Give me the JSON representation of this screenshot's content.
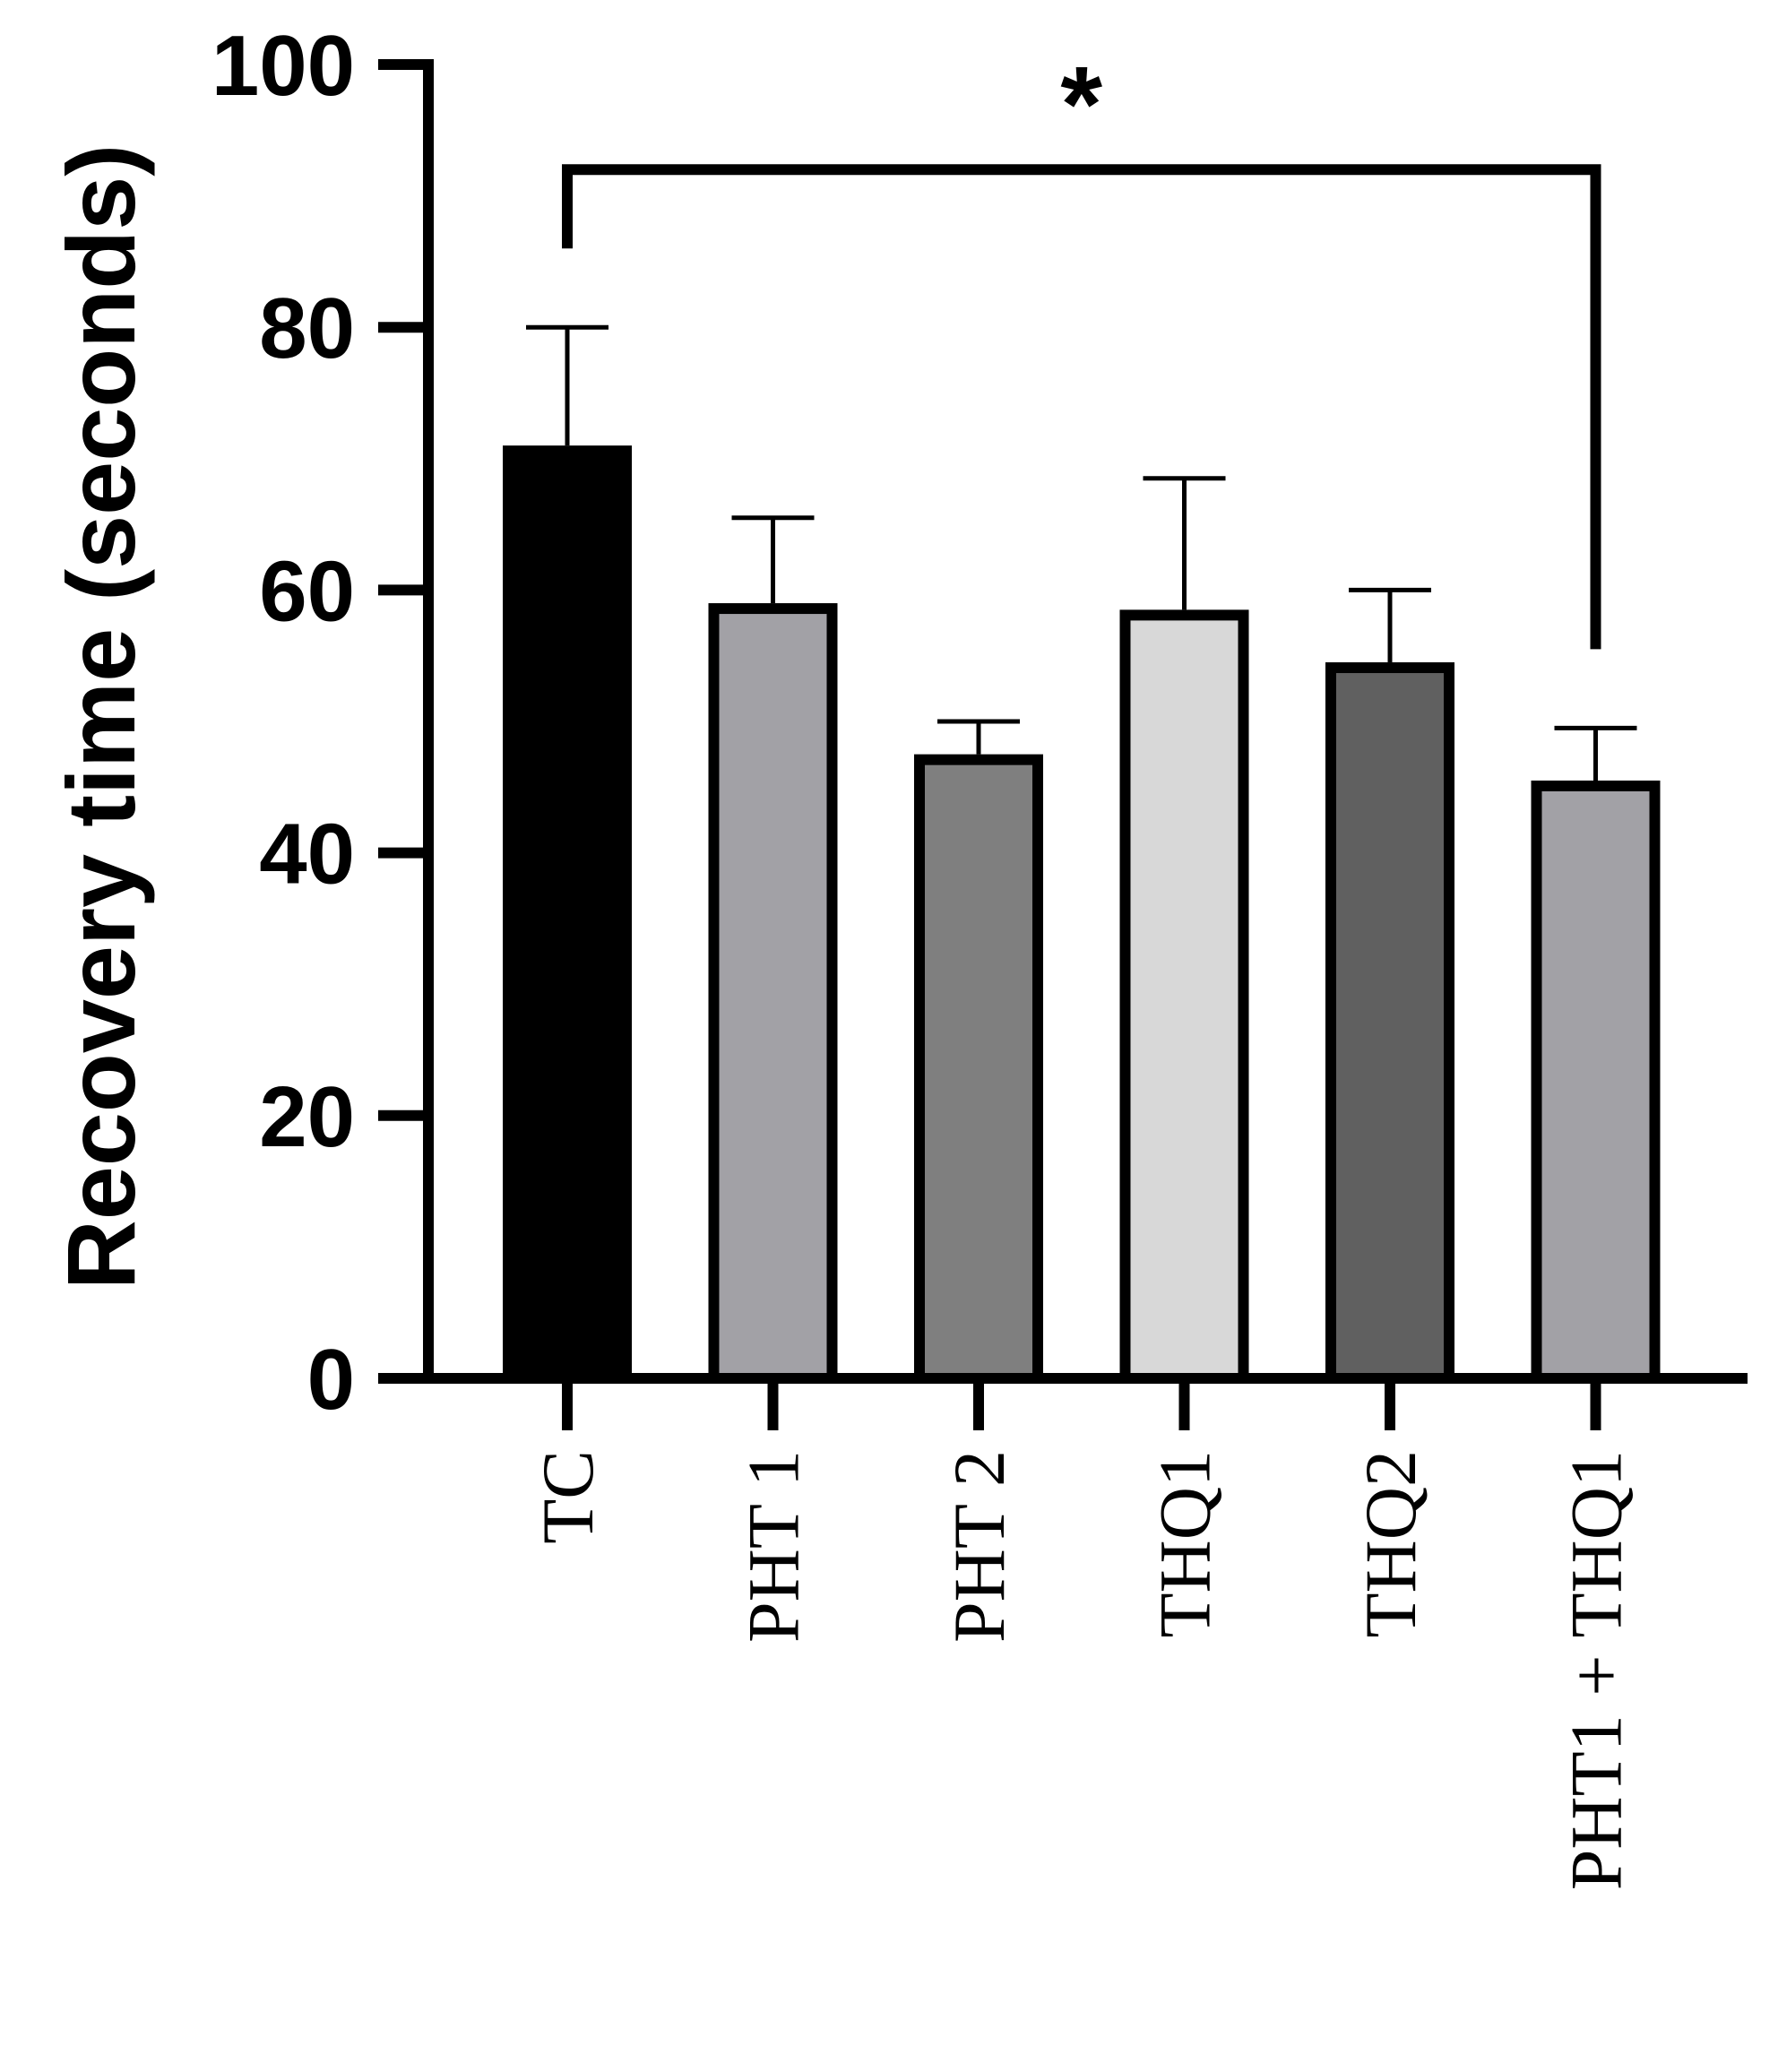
{
  "chart_data": {
    "type": "bar",
    "title": "",
    "xlabel": "",
    "ylabel": "Recovery time (seconds)",
    "ylim": [
      0,
      100
    ],
    "yticks": [
      0,
      20,
      40,
      60,
      80,
      100
    ],
    "ytick_labels": [
      "0",
      "20",
      "40",
      "60",
      "80",
      "100"
    ],
    "categories": [
      "TC",
      "PHT 1",
      "PHT 2",
      "THQ1",
      "THQ2",
      "PHT1 + THQ1"
    ],
    "values": [
      71,
      59,
      47.5,
      58.5,
      54.5,
      45.5
    ],
    "errors": [
      9,
      6.5,
      2.5,
      10,
      5.5,
      4
    ],
    "colors": [
      "#000000",
      "#a2a1a6",
      "#7f7f7f",
      "#d8d8d8",
      "#606060",
      "#a2a1a6"
    ],
    "grid": false,
    "annotations": [
      {
        "type": "significance",
        "from": "TC",
        "to": "PHT1 + THQ1",
        "y": 92,
        "label": "*"
      }
    ]
  }
}
